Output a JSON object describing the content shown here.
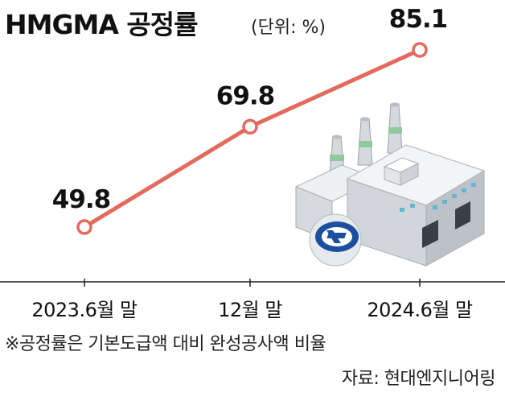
{
  "header": {
    "title": "HMGMA 공정률",
    "unit": "(단위: %)"
  },
  "chart_data": {
    "type": "line",
    "categories": [
      "2023.6월 말",
      "12월 말",
      "2024.6월 말"
    ],
    "series": [
      {
        "values": [
          49.8,
          69.8,
          85.1
        ],
        "color": "#e36a5c"
      }
    ],
    "data_labels": [
      "49.8",
      "69.8",
      "85.1"
    ],
    "ylim": [
      30,
      90
    ],
    "grid": false,
    "legend": "none"
  },
  "footer": {
    "note": "※공정률은 기본도급액 대비 완성공사액 비율",
    "source": "자료: 현대엔지니어링"
  },
  "illustration": {
    "subject": "factory-with-smokestacks",
    "logo": "hyundai-logo",
    "colors": {
      "wall": "#d9dde2",
      "window": "#5fb8cf",
      "stack_band": "#8fc9a0",
      "logo_blue": "#1d4fa0"
    }
  }
}
